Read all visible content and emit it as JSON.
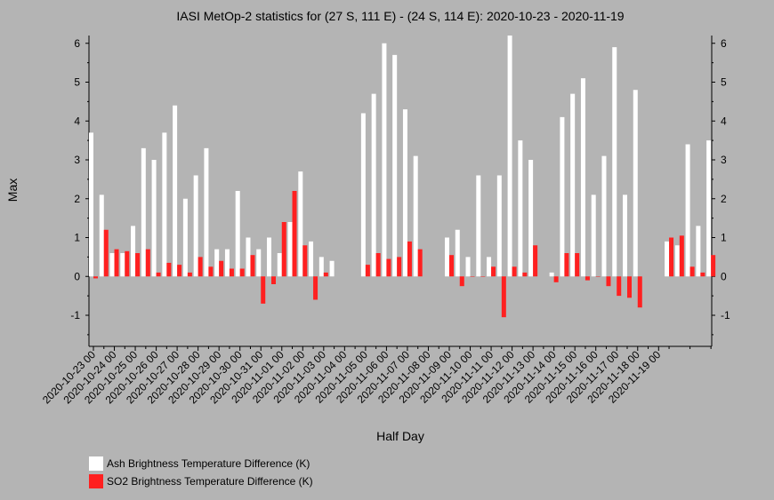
{
  "chart_data": {
    "type": "bar",
    "title": "IASI MetOp-2 statistics for (27 S, 111 E) - (24 S, 114 E): 2020-10-23 - 2020-11-19",
    "xlabel": "Half Day",
    "ylabel": "Max",
    "ylim": [
      -1.8,
      6.2
    ],
    "yticks": [
      6,
      5,
      4,
      3,
      2,
      1,
      0,
      -1
    ],
    "xtick_labels": [
      "2020-10-23 00",
      "2020-10-24 00",
      "2020-10-25 00",
      "2020-10-26 00",
      "2020-10-27 00",
      "2020-10-28 00",
      "2020-10-29 00",
      "2020-10-30 00",
      "2020-10-31 00",
      "2020-11-01 00",
      "2020-11-02 00",
      "2020-11-03 00",
      "2020-11-04 00",
      "2020-11-05 00",
      "2020-11-06 00",
      "2020-11-07 00",
      "2020-11-08 00",
      "2020-11-09 00",
      "2020-11-10 00",
      "2020-11-11 00",
      "2020-11-12 00",
      "2020-11-13 00",
      "2020-11-14 00",
      "2020-11-15 00",
      "2020-11-16 00",
      "2020-11-17 00",
      "2020-11-18 00",
      "2020-11-19 00"
    ],
    "series": [
      {
        "name": "Ash Brightness Temperature Difference (K)",
        "color": "#ffffff",
        "values": [
          3.7,
          2.1,
          0.6,
          0.6,
          1.3,
          3.3,
          3.0,
          3.7,
          4.4,
          2.0,
          2.6,
          3.3,
          0.7,
          0.7,
          2.2,
          1.0,
          0.7,
          1.0,
          0.6,
          1.4,
          2.7,
          0.9,
          0.5,
          0.4,
          null,
          null,
          4.2,
          4.7,
          6.0,
          5.7,
          4.3,
          3.1,
          null,
          null,
          1.0,
          1.2,
          0.5,
          2.6,
          0.5,
          2.6,
          6.2,
          3.5,
          3.0,
          null,
          0.1,
          4.1,
          4.7,
          5.1,
          2.1,
          3.1,
          5.9,
          2.1,
          4.8,
          null,
          null,
          0.9,
          0.8,
          3.4,
          1.3,
          3.5
        ]
      },
      {
        "name": "SO2 Brightness Temperature Difference (K)",
        "color": "#ff2020",
        "values": [
          -0.05,
          1.2,
          0.7,
          0.65,
          0.6,
          0.7,
          0.1,
          0.35,
          0.3,
          0.1,
          0.5,
          0.25,
          0.4,
          0.2,
          0.2,
          0.55,
          -0.7,
          -0.2,
          1.4,
          2.2,
          0.8,
          -0.6,
          0.1,
          null,
          null,
          null,
          0.3,
          0.6,
          0.45,
          0.5,
          0.9,
          0.7,
          null,
          null,
          0.55,
          -0.25,
          0.0,
          0.0,
          0.25,
          -1.05,
          0.25,
          0.1,
          0.8,
          null,
          -0.15,
          0.6,
          0.6,
          -0.1,
          0.0,
          -0.25,
          -0.5,
          -0.55,
          -0.8,
          null,
          null,
          1.0,
          1.05,
          0.25,
          0.1,
          0.55
        ]
      }
    ],
    "legend_position": "bottom-left",
    "background": "#b4b4b4",
    "grid": false
  }
}
